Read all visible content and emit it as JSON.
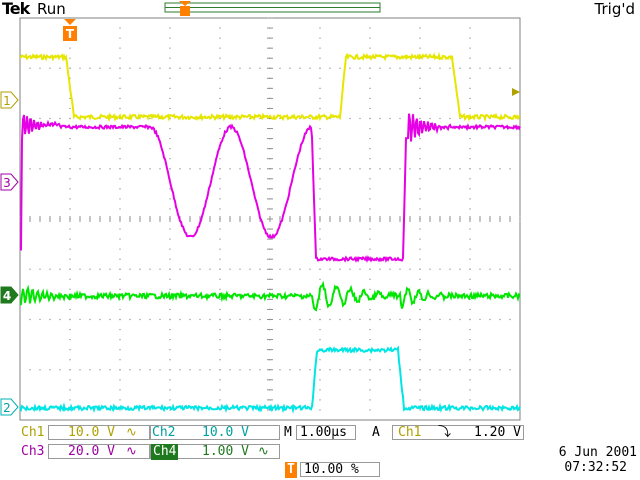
{
  "header": {
    "brand": "Tek",
    "run_state": "Run",
    "trigger_state": "Trig'd"
  },
  "markers": {
    "trigger_position": "T",
    "ch1": "1",
    "ch2": "2",
    "ch3": "3",
    "ch4": "4"
  },
  "colors": {
    "ch1": "#e6e600",
    "ch2": "#00e5e5",
    "ch3": "#e600e6",
    "ch4": "#00e600",
    "trigger": "#ff8000",
    "ch1_label": "#b0a000",
    "ch3_label": "#a000a0",
    "ch4_label_bg": "#1f7a1f"
  },
  "readouts": {
    "ch1_name": "Ch1",
    "ch1_scale": "10.0 V",
    "ch1_coupling": "∿",
    "ch2_name": "Ch2",
    "ch2_scale": "10.0 V",
    "ch3_name": "Ch3",
    "ch3_scale": "20.0 V",
    "ch3_coupling": "∿",
    "ch4_name": "Ch4",
    "ch4_scale": "1.00 V",
    "ch4_coupling": "∿",
    "timebase_prefix": "M",
    "timebase": "1.00µs",
    "trigger_mode": "A",
    "trigger_source": "Ch1",
    "trigger_slope": "⤵",
    "trigger_level": "1.20 V",
    "trigger_position_icon": "T",
    "trigger_position_value": "10.00 %"
  },
  "datetime": {
    "date": "6 Jun  2001",
    "time": "07:32:52"
  }
}
